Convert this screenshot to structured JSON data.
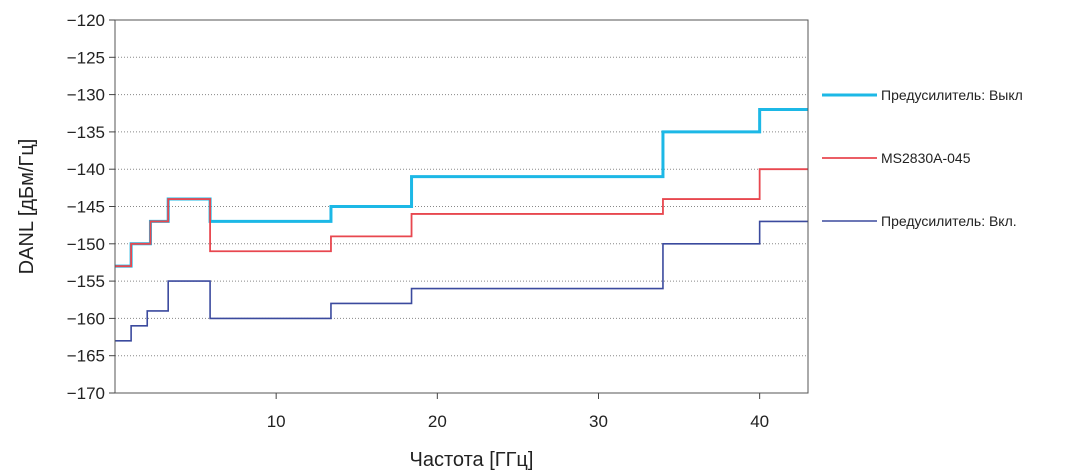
{
  "chart_data": {
    "type": "line",
    "xlabel": "Частота [ГГц]",
    "ylabel": "DANL [дБм/Гц]",
    "xlim": [
      0,
      43
    ],
    "ylim": [
      -170,
      -120
    ],
    "xticks": [
      10,
      20,
      30,
      40
    ],
    "xtick_labels": [
      "10",
      "20",
      "30",
      "40"
    ],
    "yticks": [
      -120,
      -125,
      -130,
      -135,
      -140,
      -145,
      -150,
      -155,
      -160,
      -165,
      -170
    ],
    "ytick_labels": [
      "−120",
      "−125",
      "−130",
      "−135",
      "−140",
      "−145",
      "−150",
      "−155",
      "−160",
      "−165",
      "−170"
    ],
    "grid": "horizontal dotted",
    "legend_position": "right",
    "step": "post",
    "series": [
      {
        "name": "Предусилитель:  Выкл",
        "color": "#1cb8e6",
        "x": [
          0,
          1,
          2.2,
          3.3,
          5.9,
          13.4,
          18.4,
          34,
          40,
          43
        ],
        "y": [
          -153,
          -150,
          -147,
          -144,
          -147,
          -145,
          -141,
          -135,
          -132,
          -132
        ]
      },
      {
        "name": "MS2830A-045",
        "color": "#e8474f",
        "x": [
          0,
          1,
          2.2,
          3.3,
          5.9,
          13.4,
          18.4,
          34,
          40,
          43
        ],
        "y": [
          -153,
          -150,
          -147,
          -144,
          -151,
          -149,
          -146,
          -144,
          -140,
          -140
        ]
      },
      {
        "name": "Предусилитель: Вкл.",
        "color": "#3b4a9e",
        "x": [
          0,
          1,
          2.0,
          3.3,
          5.9,
          13.4,
          18.4,
          34,
          40,
          43
        ],
        "y": [
          -163,
          -161,
          -159,
          -155,
          -160,
          -158,
          -156,
          -150,
          -147,
          -147
        ]
      }
    ]
  }
}
